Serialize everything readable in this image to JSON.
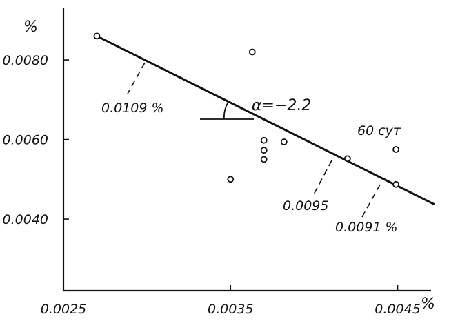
{
  "chart_data": {
    "type": "scatter",
    "title": "",
    "xlabel": "",
    "ylabel": "",
    "x_unit": "%",
    "y_unit": "%",
    "xlim": [
      0.0025,
      0.0047
    ],
    "ylim": [
      0.0022,
      0.0093
    ],
    "x_ticks": [
      {
        "value": 0.0025,
        "label": "0.0025"
      },
      {
        "value": 0.0035,
        "label": "0.0035"
      },
      {
        "value": 0.0045,
        "label": "0.0045"
      }
    ],
    "y_ticks": [
      {
        "value": 0.004,
        "label": "0.0040"
      },
      {
        "value": 0.006,
        "label": "0.0060"
      },
      {
        "value": 0.008,
        "label": "0.0080"
      }
    ],
    "grid": false,
    "points": [
      {
        "x": 0.0027,
        "y": 0.0086
      },
      {
        "x": 0.00363,
        "y": 0.0082
      },
      {
        "x": 0.0037,
        "y": 0.00598
      },
      {
        "x": 0.0037,
        "y": 0.00573
      },
      {
        "x": 0.0037,
        "y": 0.0055
      },
      {
        "x": 0.00382,
        "y": 0.00594
      },
      {
        "x": 0.0035,
        "y": 0.005
      },
      {
        "x": 0.0042,
        "y": 0.00552
      },
      {
        "x": 0.00449,
        "y": 0.00487
      },
      {
        "x": 0.00449,
        "y": 0.00575
      }
    ],
    "fit_line": {
      "slope_label": "α=−2.2",
      "from": {
        "x": 0.0027,
        "y": 0.0086
      },
      "to": {
        "x": 0.00472,
        "y": 0.00437
      }
    },
    "annotations": [
      {
        "text": "0.0109 %",
        "x": 0.00298,
        "y": 0.008
      },
      {
        "text": "0.0095",
        "x": 0.0042,
        "y": 0.00552
      },
      {
        "text": "0.0091 %",
        "x": 0.00449,
        "y": 0.00487
      },
      {
        "text": "60 сут",
        "x": 0.00449,
        "y": 0.00575
      }
    ]
  }
}
